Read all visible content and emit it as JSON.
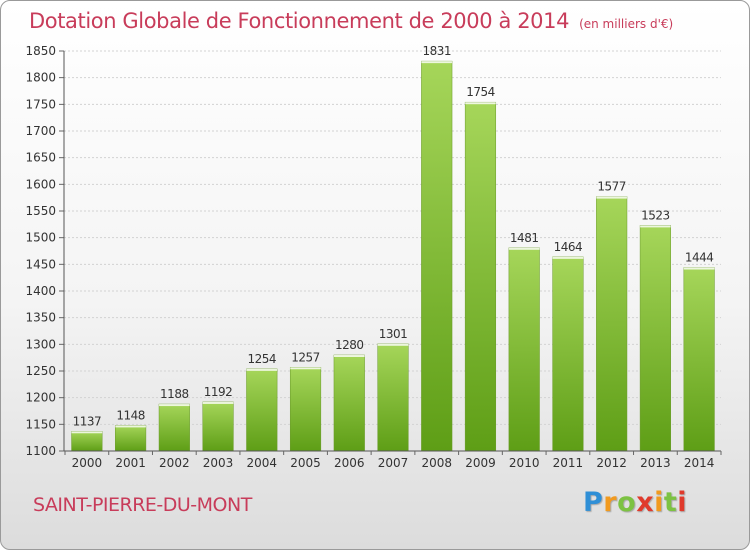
{
  "header": {
    "title": "Dotation Globale de Fonctionnement de 2000 à 2014",
    "unit": "(en milliers d'€)"
  },
  "footer": {
    "commune": "SAINT-PIERRE-DU-MONT",
    "logo_letters": [
      "P",
      "r",
      "o",
      "x",
      "i",
      "t",
      "i"
    ]
  },
  "colors": {
    "title": "#c83c5a",
    "bar_top": "#a6d65a",
    "bar_bottom": "#5e9e16",
    "logo": [
      "#2f8fd6",
      "#f19a1f",
      "#7cc242",
      "#e03a2c"
    ]
  },
  "chart_data": {
    "type": "bar",
    "title": "Dotation Globale de Fonctionnement de 2000 à 2014",
    "subtitle": "(en milliers d'€)",
    "xlabel": "",
    "ylabel": "",
    "categories": [
      "2000",
      "2001",
      "2002",
      "2003",
      "2004",
      "2005",
      "2006",
      "2007",
      "2008",
      "2009",
      "2010",
      "2011",
      "2012",
      "2013",
      "2014"
    ],
    "values": [
      1137,
      1148,
      1188,
      1192,
      1254,
      1257,
      1280,
      1301,
      1831,
      1754,
      1481,
      1464,
      1577,
      1523,
      1444
    ],
    "ylim": [
      1100,
      1850
    ],
    "yticks": [
      1100,
      1150,
      1200,
      1250,
      1300,
      1350,
      1400,
      1450,
      1500,
      1550,
      1600,
      1650,
      1700,
      1750,
      1800,
      1850
    ],
    "grid": true
  }
}
